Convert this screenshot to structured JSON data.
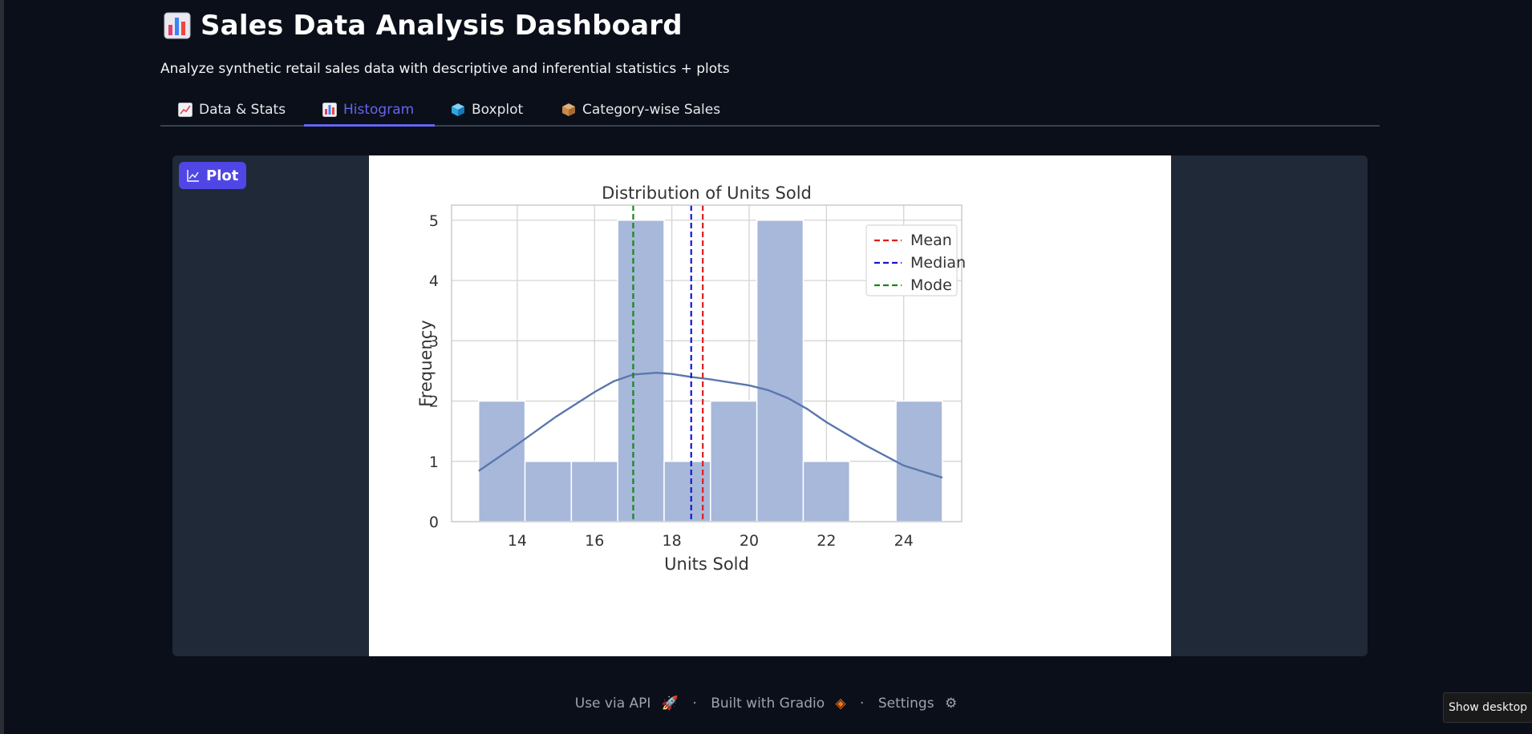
{
  "header": {
    "title": "Sales Data Analysis Dashboard",
    "subtitle": "Analyze synthetic retail sales data with descriptive and inferential statistics + plots"
  },
  "tabs": [
    {
      "label": "Data & Stats",
      "icon": "chart-increasing-icon"
    },
    {
      "label": "Histogram",
      "icon": "bar-chart-icon",
      "active": true
    },
    {
      "label": "Boxplot",
      "icon": "cube-icon"
    },
    {
      "label": "Category-wise Sales",
      "icon": "package-icon"
    }
  ],
  "plot_panel": {
    "badge_label": "Plot"
  },
  "footer": {
    "api_label": "Use via API",
    "built_label": "Built with Gradio",
    "settings_label": "Settings",
    "separator": "·"
  },
  "taskbar": {
    "show_desktop_label": "Show desktop"
  },
  "colors": {
    "accent": "#6366f1",
    "bar": "#a7b8da",
    "kde": "#5a77ad",
    "mean": "#e01b1b",
    "median": "#1515d4",
    "mode": "#138a13"
  },
  "chart_data": {
    "type": "bar",
    "title": "Distribution of Units Sold",
    "xlabel": "Units Sold",
    "ylabel": "Frequency",
    "xlim": [
      12.3,
      25.5
    ],
    "ylim": [
      0,
      5.25
    ],
    "xticks": [
      14,
      16,
      18,
      20,
      22,
      24
    ],
    "yticks": [
      0,
      1,
      2,
      3,
      4,
      5
    ],
    "grid": true,
    "bins": [
      {
        "x0": 13.0,
        "x1": 14.2,
        "count": 2
      },
      {
        "x0": 14.2,
        "x1": 15.4,
        "count": 1
      },
      {
        "x0": 15.4,
        "x1": 16.6,
        "count": 1
      },
      {
        "x0": 16.6,
        "x1": 17.8,
        "count": 5
      },
      {
        "x0": 17.8,
        "x1": 19.0,
        "count": 1
      },
      {
        "x0": 19.0,
        "x1": 20.2,
        "count": 2
      },
      {
        "x0": 20.2,
        "x1": 21.4,
        "count": 5
      },
      {
        "x0": 21.4,
        "x1": 22.6,
        "count": 1
      },
      {
        "x0": 22.6,
        "x1": 23.8,
        "count": 0
      },
      {
        "x0": 23.8,
        "x1": 25.0,
        "count": 2
      }
    ],
    "kde": {
      "x": [
        13.0,
        14.0,
        15.0,
        16.0,
        16.5,
        17.0,
        17.6,
        18.0,
        18.5,
        19.0,
        19.5,
        20.0,
        20.5,
        21.0,
        21.5,
        22.0,
        23.0,
        24.0,
        25.0
      ],
      "y": [
        0.84,
        1.28,
        1.74,
        2.15,
        2.33,
        2.44,
        2.47,
        2.45,
        2.4,
        2.36,
        2.31,
        2.26,
        2.18,
        2.05,
        1.87,
        1.65,
        1.27,
        0.93,
        0.73
      ]
    },
    "reference_lines": [
      {
        "name": "Mean",
        "x": 18.8,
        "color": "#e01b1b"
      },
      {
        "name": "Median",
        "x": 18.5,
        "color": "#1515d4"
      },
      {
        "name": "Mode",
        "x": 17.0,
        "color": "#138a13"
      }
    ],
    "legend": [
      "Mean",
      "Median",
      "Mode"
    ],
    "legend_position": "top-right"
  }
}
